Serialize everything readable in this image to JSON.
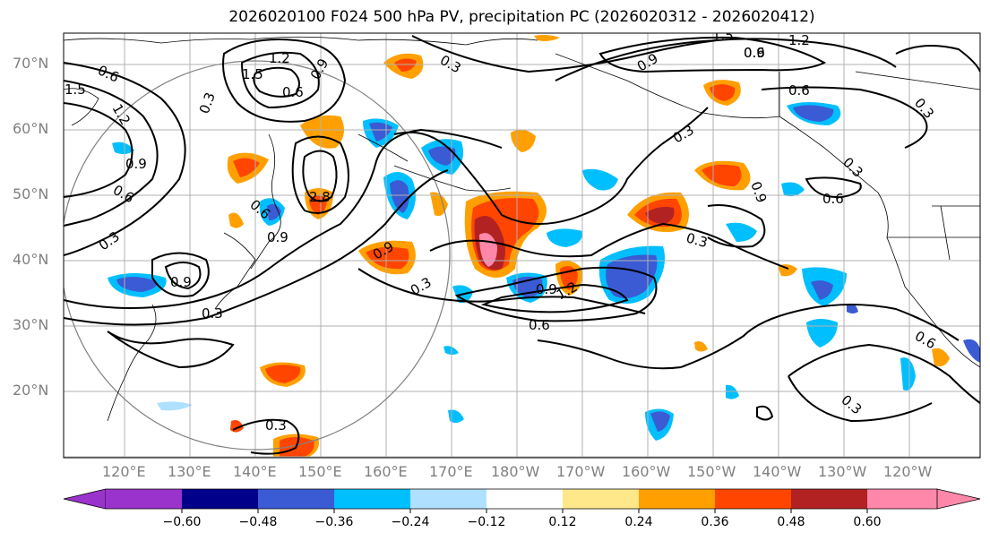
{
  "title": "2026020100 F024 500 hPa PV, precipitation PC (2026020312 - 2026020412)",
  "lat_labels": [
    "70°N",
    "60°N",
    "50°N",
    "40°N",
    "30°N",
    "20°N"
  ],
  "lon_labels": [
    "120°E",
    "130°E",
    "140°E",
    "150°E",
    "160°E",
    "170°E",
    "180°W",
    "170°W",
    "160°W",
    "150°W",
    "140°W",
    "130°W",
    "120°W"
  ],
  "contour_labels": [
    "0.6",
    "1.5",
    "1.2",
    "0.9",
    "0.3",
    "0.6",
    "0.9",
    "0.3",
    "0.6",
    "1.5",
    "1.2",
    "0.9",
    "0.3",
    "0.6",
    "0.6",
    "1.5",
    "1.2",
    "0.9",
    "0.9",
    "0.3",
    "0.9",
    "2.8",
    "0.3",
    "0.6",
    "0.3",
    "0.6",
    "0.9",
    "0.3",
    "0.3",
    "0.3",
    "0.9",
    "1.2",
    "0.6",
    "0.3",
    "0.6",
    "0.9",
    "0.3"
  ],
  "colorbar": {
    "ticks": [
      "−0.60",
      "−0.48",
      "−0.36",
      "−0.24",
      "−0.12",
      "0.12",
      "0.24",
      "0.36",
      "0.48",
      "0.60"
    ],
    "colors": [
      "#9933cc",
      "#00008b",
      "#3a5bd4",
      "#00bfff",
      "#b0e0ff",
      "#ffffff",
      "#ffe88a",
      "#ffa000",
      "#ff4500",
      "#b22222",
      "#ff88aa"
    ]
  },
  "colors": {
    "contour": "#000000",
    "grid": "#b0b0b0",
    "coast": "#000000",
    "circle": "#808080"
  }
}
